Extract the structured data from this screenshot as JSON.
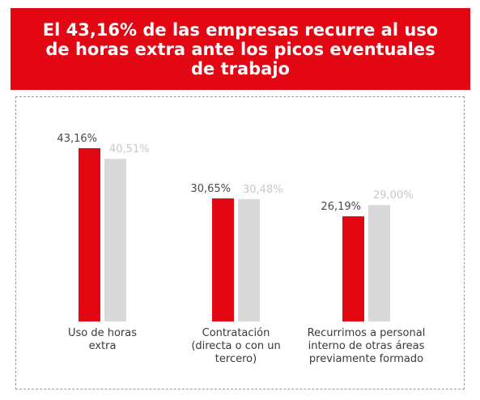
{
  "title": {
    "line1": "El 43,16% de las empresas recurre al uso",
    "line2": "de horas extra ante los picos eventuales",
    "line3": "de trabajo"
  },
  "chart_data": {
    "type": "bar",
    "title": "El 43,16% de las empresas recurre al uso de horas extra ante los picos eventuales de trabajo",
    "categories": [
      [
        "Uso de horas",
        "extra"
      ],
      [
        "Contratación",
        "(directa o con un",
        "tercero)"
      ],
      [
        "Recurrimos a personal",
        "interno de otras áreas",
        "previamente formado"
      ]
    ],
    "series": [
      {
        "values": [
          43.16,
          30.65,
          26.19
        ],
        "labels": [
          "43,16%",
          "30,65%",
          "26,19%"
        ],
        "color": "#e30613",
        "label_color": "#4a4a4a"
      },
      {
        "values": [
          40.51,
          30.48,
          29.0
        ],
        "labels": [
          "40,51%",
          "30,48%",
          "29,00%"
        ],
        "color": "#d9d9d9",
        "label_color": "#c8c8c8"
      }
    ],
    "ylim": [
      0,
      43.16
    ],
    "grid": false,
    "legend": "none"
  }
}
